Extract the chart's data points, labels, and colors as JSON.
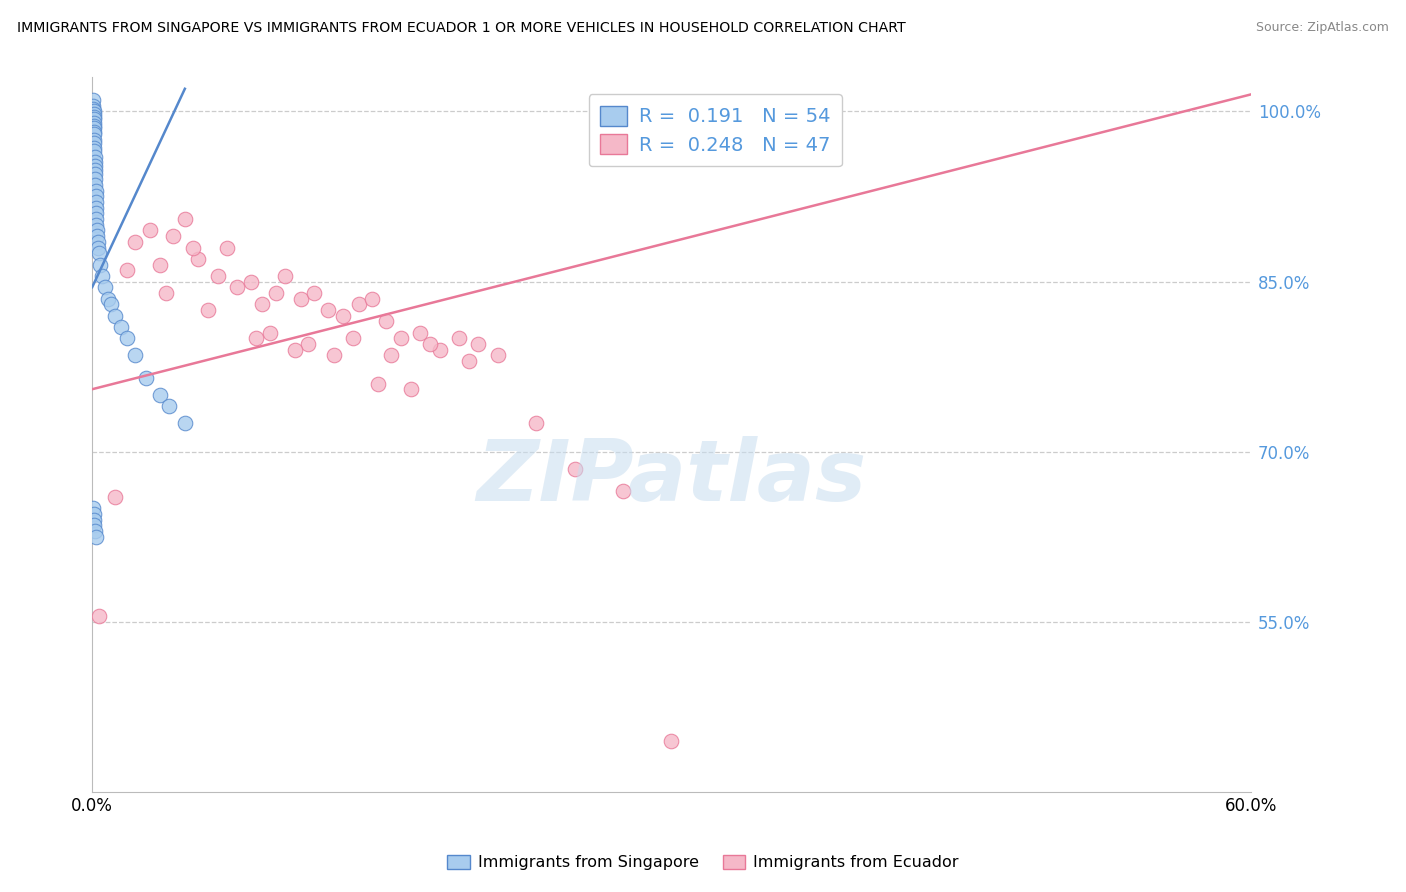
{
  "title": "IMMIGRANTS FROM SINGAPORE VS IMMIGRANTS FROM ECUADOR 1 OR MORE VEHICLES IN HOUSEHOLD CORRELATION CHART",
  "source": "Source: ZipAtlas.com",
  "ylabel": "1 or more Vehicles in Household",
  "xlim": [
    0.0,
    60.0
  ],
  "ylim": [
    40.0,
    103.0
  ],
  "yticks": [
    55.0,
    70.0,
    85.0,
    100.0
  ],
  "legend_singapore": "Immigrants from Singapore",
  "legend_ecuador": "Immigrants from Ecuador",
  "R_singapore": 0.191,
  "N_singapore": 54,
  "R_ecuador": 0.248,
  "N_ecuador": 47,
  "color_singapore_fill": "#A8CCEE",
  "color_singapore_edge": "#5588CC",
  "color_ecuador_fill": "#F5B8C8",
  "color_ecuador_edge": "#E87898",
  "color_right_axis": "#5599DD",
  "watermark_text": "ZIPatlas",
  "sg_line_x": [
    0.0,
    4.8
  ],
  "sg_line_y": [
    84.5,
    102.0
  ],
  "ec_line_x": [
    0.0,
    60.0
  ],
  "ec_line_y": [
    75.5,
    101.5
  ],
  "sg_x": [
    0.05,
    0.05,
    0.05,
    0.07,
    0.07,
    0.07,
    0.08,
    0.08,
    0.09,
    0.09,
    0.1,
    0.1,
    0.1,
    0.11,
    0.12,
    0.12,
    0.13,
    0.14,
    0.15,
    0.15,
    0.15,
    0.16,
    0.17,
    0.18,
    0.18,
    0.19,
    0.2,
    0.2,
    0.22,
    0.22,
    0.24,
    0.25,
    0.28,
    0.3,
    0.35,
    0.4,
    0.5,
    0.65,
    0.8,
    1.0,
    1.2,
    1.5,
    1.8,
    2.2,
    2.8,
    3.5,
    4.0,
    4.8,
    0.06,
    0.08,
    0.1,
    0.12,
    0.15,
    0.2
  ],
  "sg_y": [
    101.0,
    100.5,
    100.2,
    100.0,
    99.8,
    99.5,
    99.3,
    99.0,
    98.7,
    98.5,
    98.2,
    98.0,
    97.5,
    97.2,
    96.8,
    96.5,
    96.0,
    95.5,
    95.2,
    94.8,
    94.5,
    94.0,
    93.5,
    93.0,
    92.5,
    92.0,
    91.5,
    91.0,
    90.5,
    90.0,
    89.5,
    89.0,
    88.5,
    88.0,
    87.5,
    86.5,
    85.5,
    84.5,
    83.5,
    83.0,
    82.0,
    81.0,
    80.0,
    78.5,
    76.5,
    75.0,
    74.0,
    72.5,
    65.0,
    64.5,
    64.0,
    63.5,
    63.0,
    62.5
  ],
  "ec_x": [
    0.35,
    1.2,
    2.2,
    3.0,
    4.2,
    4.8,
    5.5,
    6.5,
    7.0,
    8.2,
    8.8,
    9.5,
    10.0,
    10.8,
    11.5,
    12.2,
    13.0,
    13.8,
    14.5,
    15.2,
    16.0,
    17.0,
    18.0,
    19.0,
    20.0,
    3.5,
    5.2,
    7.5,
    9.2,
    11.2,
    13.5,
    15.5,
    17.5,
    19.5,
    21.0,
    23.0,
    25.0,
    27.5,
    1.8,
    3.8,
    6.0,
    8.5,
    10.5,
    12.5,
    14.8,
    16.5,
    30.0
  ],
  "ec_y": [
    55.5,
    66.0,
    88.5,
    89.5,
    89.0,
    90.5,
    87.0,
    85.5,
    88.0,
    85.0,
    83.0,
    84.0,
    85.5,
    83.5,
    84.0,
    82.5,
    82.0,
    83.0,
    83.5,
    81.5,
    80.0,
    80.5,
    79.0,
    80.0,
    79.5,
    86.5,
    88.0,
    84.5,
    80.5,
    79.5,
    80.0,
    78.5,
    79.5,
    78.0,
    78.5,
    72.5,
    68.5,
    66.5,
    86.0,
    84.0,
    82.5,
    80.0,
    79.0,
    78.5,
    76.0,
    75.5,
    44.5
  ]
}
